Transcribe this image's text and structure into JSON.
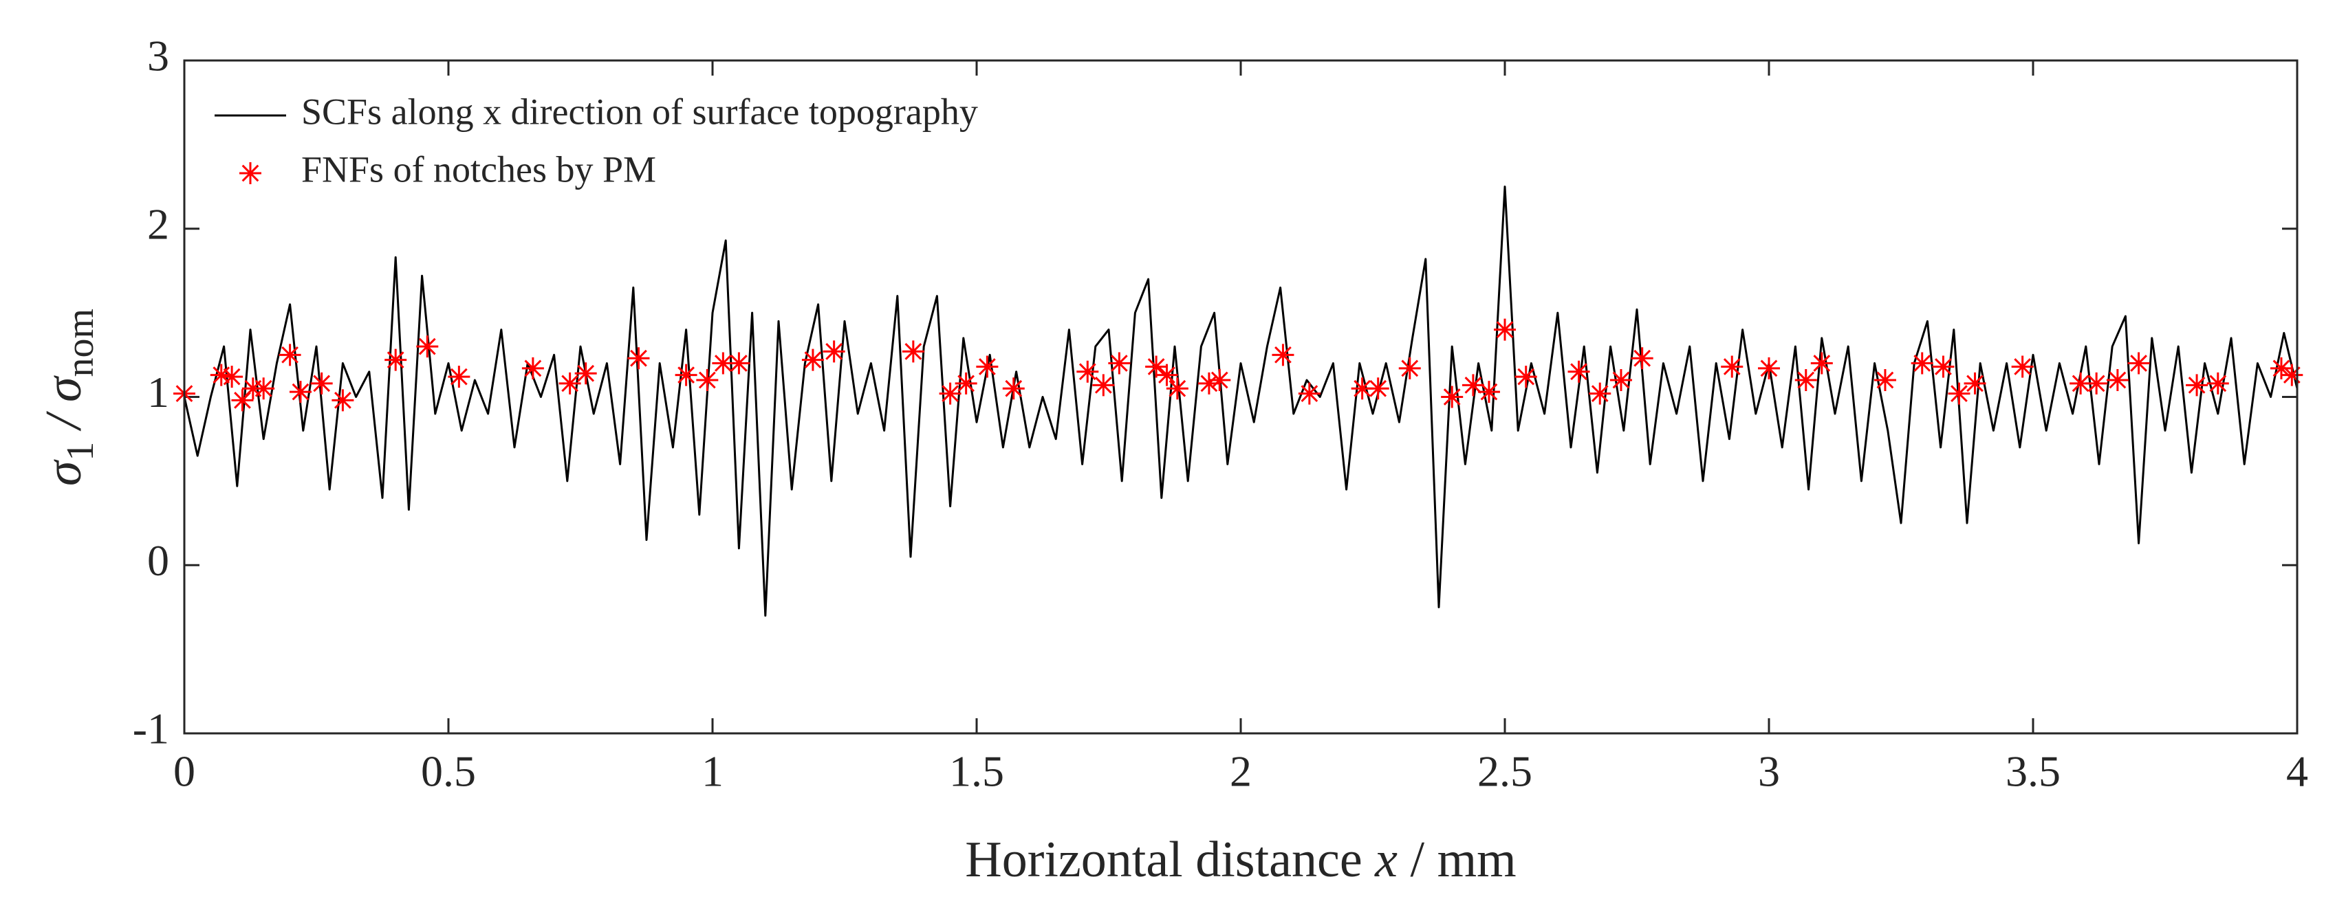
{
  "chart_data": {
    "type": "line",
    "xlabel_parts": [
      "Horizontal distance ",
      "x",
      " / mm"
    ],
    "ylabel_parts": [
      "σ",
      "1",
      " / σ",
      "nom"
    ],
    "xlim": [
      0,
      4
    ],
    "xticks": [
      0,
      0.5,
      1,
      1.5,
      2,
      2.5,
      3,
      3.5,
      4
    ],
    "ylim": [
      -1,
      3
    ],
    "yticks": [
      -1,
      0,
      1,
      2,
      3
    ],
    "grid": false,
    "legend": "upper left",
    "series": [
      {
        "name": "SCFs along x direction of surface topography",
        "color": "#000000",
        "mode": "line",
        "x": [
          0,
          0.025,
          0.05,
          0.075,
          0.1,
          0.125,
          0.15,
          0.175,
          0.2,
          0.225,
          0.25,
          0.275,
          0.3,
          0.325,
          0.35,
          0.375,
          0.4,
          0.425,
          0.45,
          0.475,
          0.5,
          0.525,
          0.55,
          0.575,
          0.6,
          0.625,
          0.65,
          0.675,
          0.7,
          0.725,
          0.75,
          0.775,
          0.8,
          0.825,
          0.85,
          0.875,
          0.9,
          0.925,
          0.95,
          0.975,
          1,
          1.025,
          1.05,
          1.075,
          1.1,
          1.125,
          1.15,
          1.175,
          1.2,
          1.225,
          1.25,
          1.275,
          1.3,
          1.325,
          1.35,
          1.375,
          1.4,
          1.425,
          1.45,
          1.475,
          1.5,
          1.525,
          1.55,
          1.575,
          1.6,
          1.625,
          1.65,
          1.675,
          1.7,
          1.725,
          1.75,
          1.775,
          1.8,
          1.825,
          1.85,
          1.875,
          1.9,
          1.925,
          1.95,
          1.975,
          2,
          2.025,
          2.05,
          2.075,
          2.1,
          2.125,
          2.15,
          2.175,
          2.2,
          2.225,
          2.25,
          2.275,
          2.3,
          2.325,
          2.35,
          2.375,
          2.4,
          2.425,
          2.45,
          2.475,
          2.5,
          2.525,
          2.55,
          2.575,
          2.6,
          2.625,
          2.65,
          2.675,
          2.7,
          2.725,
          2.75,
          2.775,
          2.8,
          2.825,
          2.85,
          2.875,
          2.9,
          2.925,
          2.95,
          2.975,
          3,
          3.025,
          3.05,
          3.075,
          3.1,
          3.125,
          3.15,
          3.175,
          3.2,
          3.225,
          3.25,
          3.275,
          3.3,
          3.325,
          3.35,
          3.375,
          3.4,
          3.425,
          3.45,
          3.475,
          3.5,
          3.525,
          3.55,
          3.575,
          3.6,
          3.625,
          3.65,
          3.675,
          3.7,
          3.725,
          3.75,
          3.775,
          3.8,
          3.825,
          3.85,
          3.875,
          3.9,
          3.925,
          3.95,
          3.975,
          4
        ],
        "values": [
          1.0,
          0.65,
          1.0,
          1.3,
          0.47,
          1.4,
          0.75,
          1.2,
          1.55,
          0.8,
          1.3,
          0.45,
          1.2,
          1.0,
          1.15,
          0.4,
          1.83,
          0.33,
          1.72,
          0.9,
          1.2,
          0.8,
          1.1,
          0.9,
          1.4,
          0.7,
          1.2,
          1.0,
          1.25,
          0.5,
          1.3,
          0.9,
          1.2,
          0.6,
          1.65,
          0.15,
          1.2,
          0.7,
          1.4,
          0.3,
          1.5,
          1.93,
          0.1,
          1.5,
          -0.3,
          1.45,
          0.45,
          1.2,
          1.55,
          0.5,
          1.45,
          0.9,
          1.2,
          0.8,
          1.6,
          0.05,
          1.3,
          1.6,
          0.35,
          1.35,
          0.85,
          1.25,
          0.7,
          1.15,
          0.7,
          1.0,
          0.75,
          1.4,
          0.6,
          1.3,
          1.4,
          0.5,
          1.5,
          1.7,
          0.4,
          1.3,
          0.5,
          1.3,
          1.5,
          0.6,
          1.2,
          0.85,
          1.3,
          1.65,
          0.9,
          1.1,
          1.0,
          1.2,
          0.45,
          1.2,
          0.9,
          1.2,
          0.85,
          1.35,
          1.82,
          -0.25,
          1.3,
          0.6,
          1.2,
          0.8,
          2.25,
          0.8,
          1.2,
          0.9,
          1.5,
          0.7,
          1.3,
          0.55,
          1.3,
          0.8,
          1.52,
          0.6,
          1.2,
          0.9,
          1.3,
          0.5,
          1.2,
          0.75,
          1.4,
          0.9,
          1.2,
          0.7,
          1.3,
          0.45,
          1.35,
          0.9,
          1.3,
          0.5,
          1.2,
          0.8,
          0.25,
          1.2,
          1.45,
          0.7,
          1.4,
          0.25,
          1.2,
          0.8,
          1.2,
          0.7,
          1.25,
          0.8,
          1.2,
          0.9,
          1.3,
          0.6,
          1.3,
          1.48,
          0.13,
          1.35,
          0.8,
          1.3,
          0.55,
          1.2,
          0.9,
          1.35,
          0.6,
          1.2,
          1.0,
          1.38,
          1.05
        ]
      },
      {
        "name": "FNFs of notches by PM",
        "color": "#ff0000",
        "mode": "markers",
        "x": [
          0.0,
          0.07,
          0.09,
          0.11,
          0.13,
          0.15,
          0.2,
          0.22,
          0.26,
          0.3,
          0.4,
          0.46,
          0.52,
          0.66,
          0.73,
          0.76,
          0.86,
          0.95,
          0.99,
          1.02,
          1.05,
          1.19,
          1.23,
          1.38,
          1.45,
          1.48,
          1.52,
          1.57,
          1.71,
          1.74,
          1.77,
          1.84,
          1.86,
          1.88,
          1.94,
          1.96,
          2.08,
          2.13,
          2.23,
          2.26,
          2.32,
          2.4,
          2.44,
          2.47,
          2.5,
          2.54,
          2.64,
          2.68,
          2.72,
          2.76,
          2.93,
          3.0,
          3.07,
          3.1,
          3.22,
          3.29,
          3.33,
          3.36,
          3.39,
          3.48,
          3.59,
          3.62,
          3.66,
          3.7,
          3.81,
          3.85,
          3.97,
          3.99
        ],
        "values": [
          1.02,
          1.13,
          1.12,
          0.98,
          1.05,
          1.05,
          1.25,
          1.03,
          1.08,
          0.98,
          1.22,
          1.3,
          1.12,
          1.17,
          1.08,
          1.14,
          1.23,
          1.13,
          1.1,
          1.2,
          1.2,
          1.22,
          1.27,
          1.27,
          1.02,
          1.08,
          1.18,
          1.05,
          1.15,
          1.07,
          1.2,
          1.18,
          1.13,
          1.05,
          1.08,
          1.1,
          1.25,
          1.02,
          1.05,
          1.05,
          1.17,
          1.0,
          1.07,
          1.03,
          1.4,
          1.12,
          1.15,
          1.02,
          1.1,
          1.23,
          1.18,
          1.17,
          1.1,
          1.2,
          1.1,
          1.2,
          1.18,
          1.02,
          1.08,
          1.18,
          1.08,
          1.08,
          1.1,
          1.2,
          1.07,
          1.08,
          1.17,
          1.13
        ]
      }
    ]
  }
}
